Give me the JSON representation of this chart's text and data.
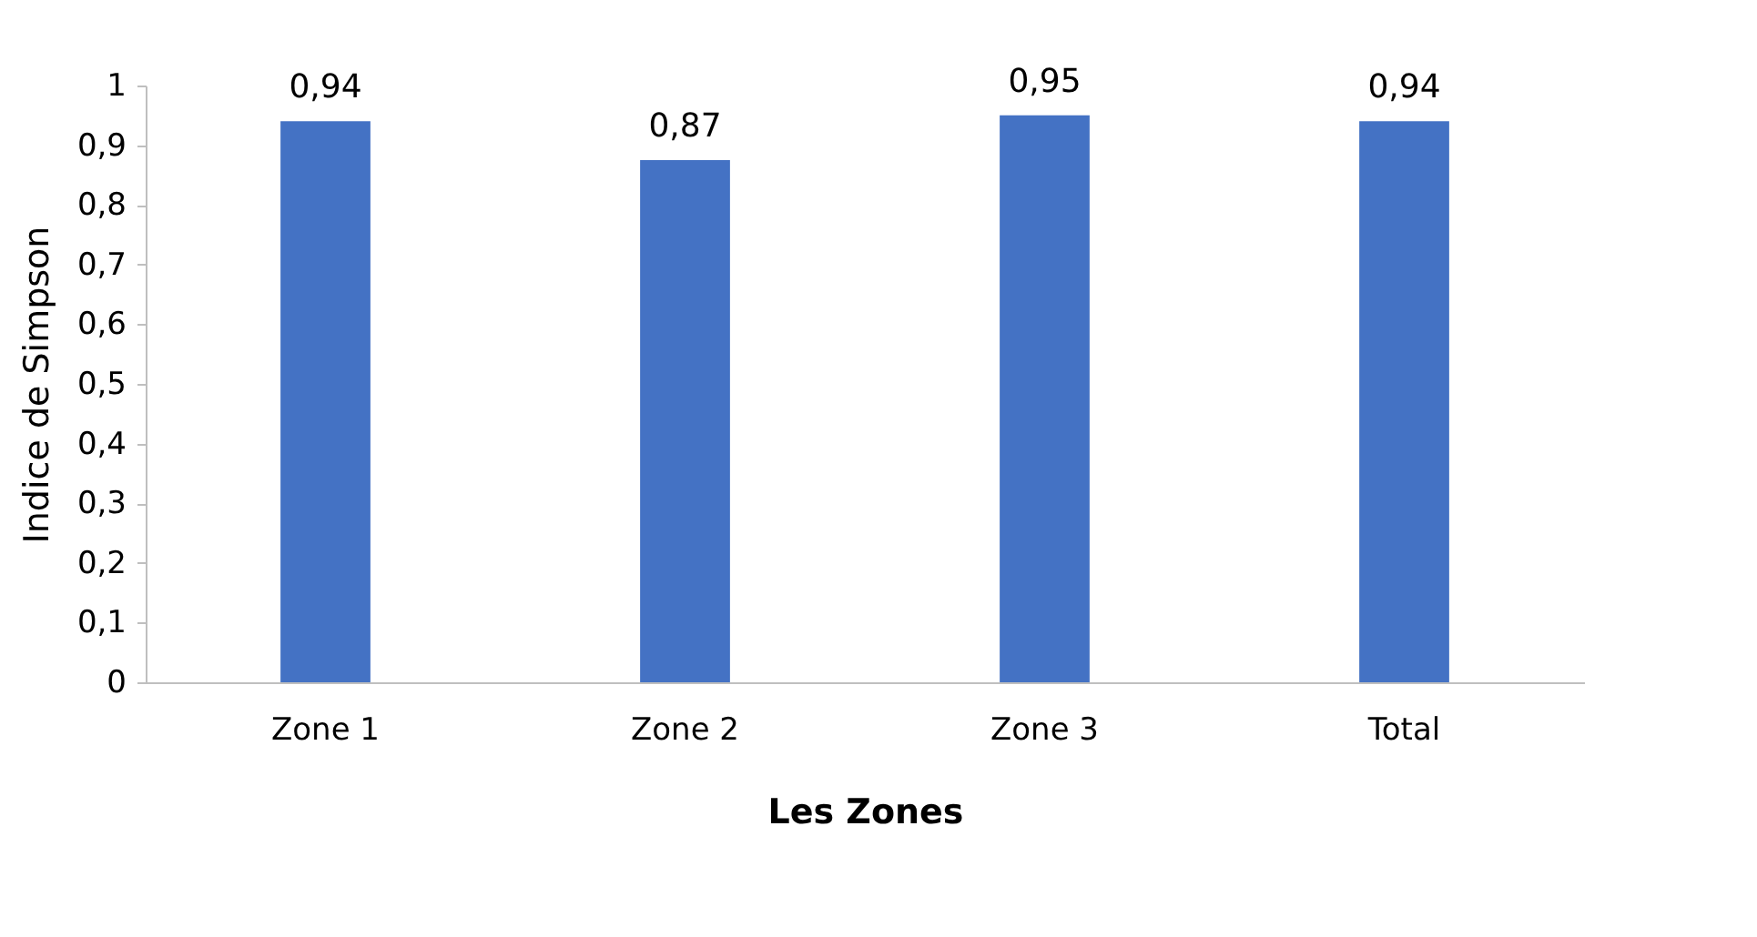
{
  "chart_data": {
    "type": "bar",
    "xlabel": "Les Zones",
    "ylabel": "Indice de Simpson",
    "categories": [
      "Zone 1",
      "Zone 2",
      "Zone 3",
      "Total"
    ],
    "values": [
      0.94,
      0.875,
      0.95,
      0.94
    ],
    "value_labels": [
      "0,94",
      "0,87",
      "0,95",
      "0,94"
    ],
    "color": "#4472c4",
    "ylim": [
      0,
      1
    ],
    "yticks": [
      0,
      {
        "value": 0.1,
        "label": "0,1"
      },
      {
        "value": 0.2,
        "label": "0,2"
      },
      {
        "value": 0.3,
        "label": "0,3"
      },
      {
        "value": 0.4,
        "label": "0,4"
      },
      {
        "value": 0.5,
        "label": "0,5"
      },
      {
        "value": 0.6,
        "label": "0,6"
      },
      {
        "value": 0.7,
        "label": "0,7"
      },
      {
        "value": 0.8,
        "label": "0,8"
      },
      {
        "value": 0.9,
        "label": "0,9"
      },
      1
    ],
    "grid": false,
    "legend": false
  }
}
